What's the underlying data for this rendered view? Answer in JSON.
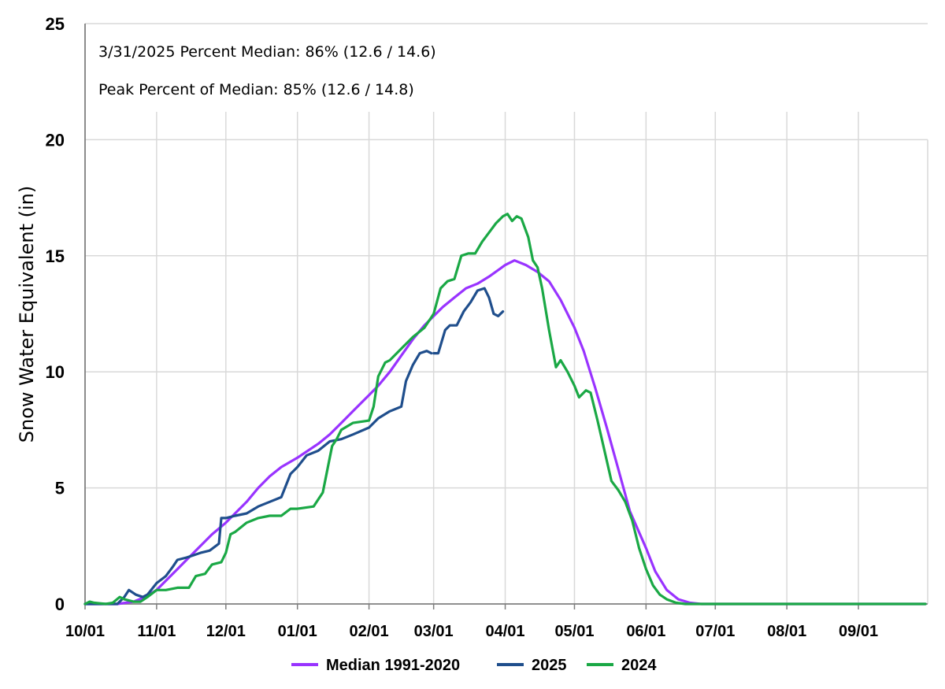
{
  "chart_data": {
    "type": "line",
    "title": "",
    "ylabel": "Snow Water Equivalent (in)",
    "xlabel": "",
    "ylim": [
      0,
      25
    ],
    "yticks": [
      0,
      5,
      10,
      15,
      20,
      25
    ],
    "xlim": [
      "10/01",
      "09/30"
    ],
    "xtick_labels": [
      "10/01",
      "11/01",
      "12/01",
      "01/01",
      "02/01",
      "03/01",
      "04/01",
      "05/01",
      "06/01",
      "07/01",
      "08/01",
      "09/01"
    ],
    "grid": true,
    "legend_position": "bottom",
    "annotations": [
      "3/31/2025 Percent Median: 86% (12.6 / 14.6)",
      "Peak Percent of Median: 85% (12.6 / 14.8)"
    ],
    "series": [
      {
        "name": "Median 1991-2020",
        "color": "#9933ff",
        "x": [
          "10/01",
          "10/15",
          "10/22",
          "10/27",
          "11/01",
          "11/05",
          "11/10",
          "11/15",
          "11/20",
          "11/25",
          "12/01",
          "12/05",
          "12/10",
          "12/15",
          "12/20",
          "12/25",
          "01/01",
          "01/10",
          "01/15",
          "01/20",
          "01/25",
          "02/01",
          "02/05",
          "02/10",
          "02/15",
          "02/20",
          "02/25",
          "03/01",
          "03/05",
          "03/10",
          "03/15",
          "03/20",
          "03/25",
          "04/01",
          "04/05",
          "04/10",
          "04/15",
          "04/20",
          "04/25",
          "05/01",
          "05/05",
          "05/10",
          "05/15",
          "05/20",
          "05/25",
          "06/01",
          "06/05",
          "06/10",
          "06/15",
          "06/20",
          "06/25",
          "07/01",
          "09/30"
        ],
        "y": [
          0,
          0,
          0.1,
          0.3,
          0.6,
          1.0,
          1.5,
          2.0,
          2.5,
          3.0,
          3.5,
          3.9,
          4.4,
          5.0,
          5.5,
          5.9,
          6.3,
          6.9,
          7.3,
          7.8,
          8.3,
          9.0,
          9.4,
          10.0,
          10.7,
          11.4,
          12.0,
          12.4,
          12.8,
          13.2,
          13.6,
          13.8,
          14.1,
          14.6,
          14.8,
          14.6,
          14.3,
          13.9,
          13.1,
          11.9,
          10.9,
          9.3,
          7.6,
          5.8,
          4.0,
          2.4,
          1.4,
          0.6,
          0.2,
          0.05,
          0,
          0,
          0
        ]
      },
      {
        "name": "2025",
        "color": "#1f4e8c",
        "x": [
          "10/01",
          "10/15",
          "10/18",
          "10/20",
          "10/23",
          "10/26",
          "10/28",
          "11/01",
          "11/05",
          "11/08",
          "11/10",
          "11/14",
          "11/17",
          "11/20",
          "11/24",
          "11/28",
          "11/29",
          "12/01",
          "12/05",
          "12/10",
          "12/15",
          "12/20",
          "12/25",
          "12/29",
          "01/01",
          "01/05",
          "01/10",
          "01/15",
          "01/20",
          "01/25",
          "02/01",
          "02/05",
          "02/10",
          "02/15",
          "02/17",
          "02/20",
          "02/23",
          "02/26",
          "02/28"
        ],
        "y": [
          0,
          0,
          0.3,
          0.6,
          0.4,
          0.3,
          0.4,
          0.9,
          1.2,
          1.6,
          1.9,
          2.0,
          2.1,
          2.2,
          2.3,
          2.6,
          3.7,
          3.7,
          3.8,
          3.9,
          4.2,
          4.4,
          4.6,
          5.6,
          5.9,
          6.4,
          6.6,
          7.0,
          7.1,
          7.3,
          7.6,
          8.0,
          8.3,
          8.5,
          9.6,
          10.3,
          10.8,
          10.9,
          10.8
        ],
        "x2": [
          "03/01",
          "03/03",
          "03/06",
          "03/08",
          "03/11",
          "03/14",
          "03/17",
          "03/20",
          "03/23",
          "03/25",
          "03/27",
          "03/29",
          "03/31"
        ],
        "y2": [
          10.8,
          10.8,
          11.8,
          12.0,
          12.0,
          12.6,
          13.0,
          13.5,
          13.6,
          13.2,
          12.5,
          12.4,
          12.6
        ]
      },
      {
        "name": "2024",
        "color": "#1aa845",
        "x": [
          "10/01",
          "10/03",
          "10/05",
          "10/10",
          "10/13",
          "10/16",
          "10/18",
          "10/22",
          "10/25",
          "10/28",
          "11/01",
          "11/05",
          "11/10",
          "11/15",
          "11/18",
          "11/22",
          "11/25",
          "11/29",
          "12/01",
          "12/03",
          "12/05",
          "12/10",
          "12/15",
          "12/20",
          "12/25",
          "12/29",
          "01/01",
          "01/08",
          "01/12",
          "01/14",
          "01/16",
          "01/18",
          "01/20",
          "01/25",
          "02/01",
          "02/03",
          "02/05",
          "02/08",
          "02/10",
          "02/15",
          "02/20",
          "02/25",
          "03/01",
          "03/04",
          "03/07",
          "03/10",
          "03/13",
          "03/16",
          "03/19",
          "03/22",
          "03/25",
          "03/28",
          "03/31",
          "04/02",
          "04/04",
          "04/06",
          "04/08",
          "04/11",
          "04/13",
          "04/15",
          "04/17",
          "04/20",
          "04/23",
          "04/25",
          "04/28",
          "05/01",
          "05/03",
          "05/06",
          "05/08",
          "05/11",
          "05/14",
          "05/17",
          "05/20",
          "05/23",
          "05/26",
          "05/29",
          "06/01",
          "06/04",
          "06/07",
          "06/10",
          "06/14",
          "06/18",
          "06/22",
          "06/26",
          "07/01",
          "09/30"
        ],
        "y": [
          0,
          0.1,
          0.05,
          0,
          0.05,
          0.3,
          0.2,
          0.1,
          0.1,
          0.3,
          0.6,
          0.6,
          0.7,
          0.7,
          1.2,
          1.3,
          1.7,
          1.8,
          2.2,
          3.0,
          3.1,
          3.5,
          3.7,
          3.8,
          3.8,
          4.1,
          4.1,
          4.2,
          4.8,
          5.8,
          6.8,
          7.1,
          7.5,
          7.8,
          7.9,
          8.5,
          9.8,
          10.4,
          10.5,
          11.0,
          11.5,
          11.9,
          12.5,
          13.6,
          13.9,
          14.0,
          15.0,
          15.1,
          15.1,
          15.6,
          16.0,
          16.4,
          16.7,
          16.8,
          16.5,
          16.7,
          16.6,
          15.8,
          14.8,
          14.5,
          13.6,
          11.8,
          10.2,
          10.5,
          10.0,
          9.4,
          8.9,
          9.2,
          9.1,
          7.9,
          6.6,
          5.3,
          4.9,
          4.4,
          3.6,
          2.4,
          1.5,
          0.8,
          0.4,
          0.2,
          0.05,
          0,
          0,
          0,
          0,
          0
        ]
      }
    ]
  }
}
